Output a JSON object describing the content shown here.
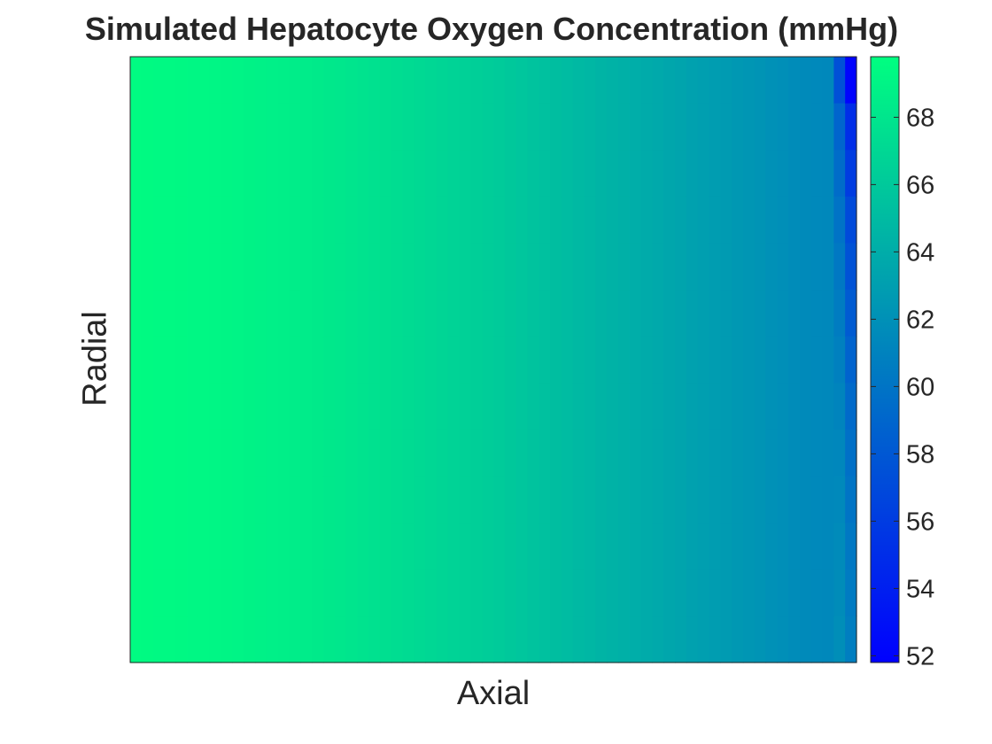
{
  "chart_data": {
    "type": "heatmap",
    "title": "Simulated Hepatocyte Oxygen Concentration (mmHg)",
    "xlabel": "Axial",
    "ylabel": "Radial",
    "xticks": [],
    "yticks": [],
    "colormap": "winter",
    "colormap_stops": [
      "#0000ff",
      "#00ff80"
    ],
    "clim": [
      51.8,
      69.8
    ],
    "colorbar_ticks": [
      "52",
      "54",
      "56",
      "58",
      "60",
      "62",
      "64",
      "66",
      "68"
    ],
    "axial_profile": [
      69.5,
      69.3,
      69.0,
      68.6,
      68.1,
      67.5,
      66.8,
      66.2,
      65.4,
      64.6,
      63.9,
      63.1,
      62.4,
      61.6,
      61.2
    ],
    "radial_rows": 13,
    "last_column_by_row": [
      52.0,
      55.0,
      56.0,
      57.0,
      57.6,
      58.2,
      58.8,
      59.3,
      59.7,
      60.0,
      60.3,
      60.5,
      60.7
    ]
  }
}
